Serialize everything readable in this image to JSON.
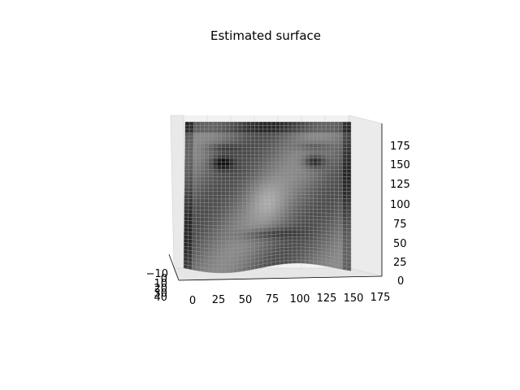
{
  "chart_data": {
    "type": "surface",
    "title": "Estimated surface",
    "projection": "3d",
    "view": "near-frontal, slightly elevated",
    "colormap": "grayscale",
    "grid": true,
    "x_axis": {
      "label": "",
      "ticks": [
        "0",
        "25",
        "50",
        "75",
        "100",
        "125",
        "150",
        "175"
      ],
      "lim": [
        -5,
        180
      ]
    },
    "y_axis": {
      "label": "",
      "ticks": [
        "−10",
        "0",
        "10",
        "20",
        "30",
        "40"
      ],
      "lim": [
        -12,
        42
      ]
    },
    "z_axis": {
      "label": "",
      "ticks": [
        "0",
        "25",
        "50",
        "75",
        "100",
        "125",
        "150",
        "175"
      ],
      "lim": [
        0,
        190
      ]
    },
    "surface": {
      "rows": 40,
      "cols": 40,
      "x_range": [
        0,
        175
      ],
      "z_range": [
        0,
        190
      ]
    }
  }
}
